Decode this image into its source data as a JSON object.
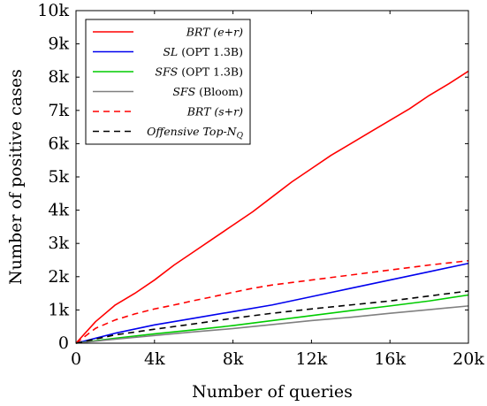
{
  "chart_data": {
    "type": "line",
    "xlabel": "Number of queries",
    "ylabel": "Number of positive cases",
    "xlim": [
      0,
      20000
    ],
    "ylim": [
      0,
      10000
    ],
    "x_ticks": [
      0,
      4000,
      8000,
      12000,
      16000,
      20000
    ],
    "x_tick_labels": [
      "0",
      "4k",
      "8k",
      "12k",
      "16k",
      "20k"
    ],
    "y_ticks": [
      0,
      1000,
      2000,
      3000,
      4000,
      5000,
      6000,
      7000,
      8000,
      9000,
      10000
    ],
    "y_tick_labels": [
      "0",
      "1k",
      "2k",
      "3k",
      "4k",
      "5k",
      "6k",
      "7k",
      "8k",
      "9k",
      "10k"
    ],
    "grid": false,
    "legend_position": "top-left",
    "series": [
      {
        "name": "BRT (e+r)",
        "label_main": "BRT (e+r)",
        "label_suffix": "",
        "color": "#ff0000",
        "dash": "solid",
        "x": [
          0,
          1000,
          2000,
          3000,
          4000,
          5000,
          6000,
          7000,
          8000,
          9000,
          10000,
          11000,
          12000,
          13000,
          14000,
          15000,
          16000,
          17000,
          18000,
          19000,
          20000
        ],
        "y": [
          0,
          650,
          1150,
          1500,
          1900,
          2350,
          2750,
          3150,
          3550,
          3950,
          4400,
          4850,
          5250,
          5650,
          6000,
          6350,
          6700,
          7050,
          7450,
          7800,
          8180
        ]
      },
      {
        "name": "SL (OPT 1.3B)",
        "label_main": "SL",
        "label_suffix": " (OPT 1.3B)",
        "color": "#0000ee",
        "dash": "solid",
        "x": [
          0,
          2000,
          4000,
          6000,
          8000,
          10000,
          12000,
          14000,
          16000,
          18000,
          20000
        ],
        "y": [
          0,
          300,
          550,
          750,
          950,
          1150,
          1400,
          1650,
          1900,
          2150,
          2400
        ]
      },
      {
        "name": "SFS (OPT 1.3B)",
        "label_main": "SFS",
        "label_suffix": " (OPT 1.3B)",
        "color": "#00cc00",
        "dash": "solid",
        "x": [
          0,
          2000,
          4000,
          6000,
          8000,
          10000,
          12000,
          14000,
          16000,
          18000,
          20000
        ],
        "y": [
          0,
          150,
          280,
          400,
          530,
          680,
          830,
          980,
          1120,
          1270,
          1450
        ]
      },
      {
        "name": "SFS (Bloom)",
        "label_main": "SFS",
        "label_suffix": " (Bloom)",
        "color": "#808080",
        "dash": "solid",
        "x": [
          0,
          2000,
          4000,
          6000,
          8000,
          10000,
          12000,
          14000,
          16000,
          18000,
          20000
        ],
        "y": [
          0,
          120,
          230,
          340,
          440,
          560,
          680,
          780,
          900,
          1010,
          1120
        ]
      },
      {
        "name": "BRT (s+r)",
        "label_main": "BRT (s+r)",
        "label_suffix": "",
        "color": "#ff0000",
        "dash": "dashed",
        "x": [
          0,
          1000,
          2000,
          3000,
          4000,
          5000,
          6000,
          7000,
          8000,
          9000,
          10000,
          12000,
          14000,
          16000,
          18000,
          20000
        ],
        "y": [
          0,
          450,
          700,
          880,
          1030,
          1150,
          1280,
          1400,
          1530,
          1650,
          1750,
          1900,
          2050,
          2200,
          2350,
          2480
        ]
      },
      {
        "name": "Offensive Top-N_Q",
        "label_main": "Offensive Top-N",
        "label_sub": "Q",
        "label_suffix": "",
        "color": "#000000",
        "dash": "dashed",
        "x": [
          0,
          2000,
          4000,
          6000,
          8000,
          10000,
          12000,
          14000,
          16000,
          18000,
          20000
        ],
        "y": [
          0,
          250,
          420,
          580,
          750,
          900,
          1030,
          1150,
          1270,
          1420,
          1570
        ]
      }
    ]
  }
}
